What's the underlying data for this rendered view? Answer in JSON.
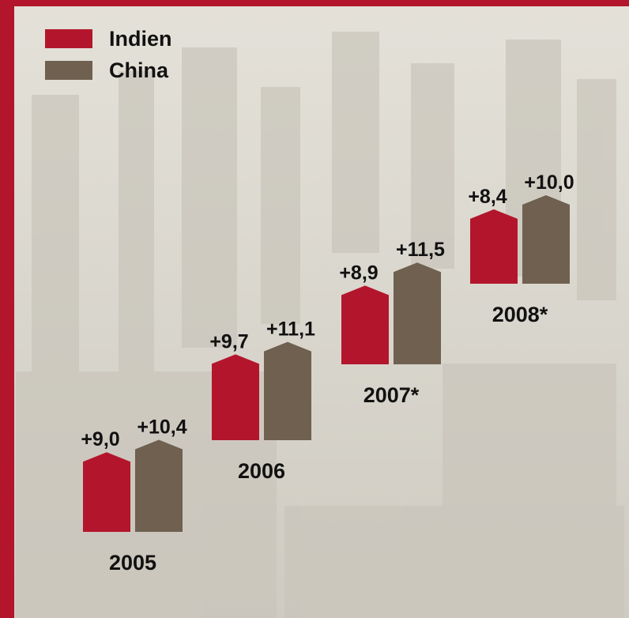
{
  "chart_data": {
    "type": "bar",
    "categories": [
      "2005",
      "2006",
      "2007*",
      "2008*"
    ],
    "series": [
      {
        "name": "Indien",
        "color": "#b3162c",
        "values": [
          9.0,
          9.7,
          8.9,
          8.4
        ],
        "value_labels": [
          "+9,0",
          "+9,7",
          "+8,9",
          "+8,4"
        ]
      },
      {
        "name": "China",
        "color": "#6f6050",
        "values": [
          10.4,
          11.1,
          11.5,
          10.0
        ],
        "value_labels": [
          "+10,4",
          "+11,1",
          "+11,5",
          "+10,0"
        ]
      }
    ]
  }
}
